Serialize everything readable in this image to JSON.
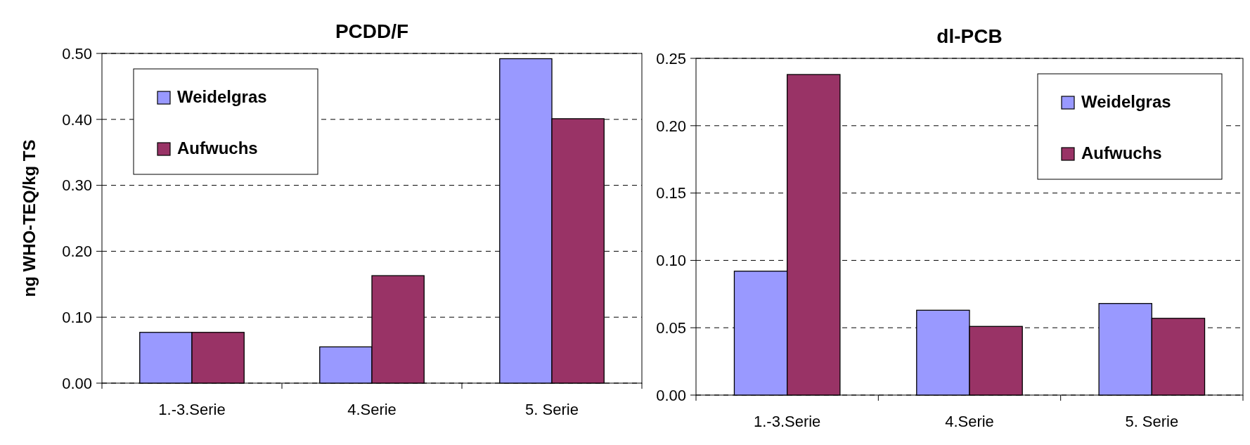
{
  "chart_data": [
    {
      "type": "bar",
      "title": "PCDD/F",
      "ylabel": "ng WHO-TEQ/kg TS",
      "categories": [
        "1.-3.Serie",
        "4.Serie",
        "5. Serie"
      ],
      "series": [
        {
          "name": "Weidelgras",
          "color": "#9999ff",
          "values": [
            0.077,
            0.055,
            0.492
          ]
        },
        {
          "name": "Aufwuchs",
          "color": "#993366",
          "values": [
            0.077,
            0.163,
            0.401
          ]
        }
      ],
      "ylim": [
        0,
        0.5
      ],
      "yticks": [
        {
          "value": 0,
          "label": "0.00"
        },
        {
          "value": 0.1,
          "label": "0.10"
        },
        {
          "value": 0.2,
          "label": "0.20"
        },
        {
          "value": 0.3,
          "label": "0.30"
        },
        {
          "value": 0.4,
          "label": "0.40"
        },
        {
          "value": 0.5,
          "label": "0.50"
        }
      ],
      "grid": "y",
      "legend": "top left"
    },
    {
      "type": "bar",
      "title": "dl-PCB",
      "categories": [
        "1.-3.Serie",
        "4.Serie",
        "5. Serie"
      ],
      "series": [
        {
          "name": "Weidelgras",
          "color": "#9999ff",
          "values": [
            0.092,
            0.063,
            0.068
          ]
        },
        {
          "name": "Aufwuchs",
          "color": "#993366",
          "values": [
            0.238,
            0.051,
            0.057
          ]
        }
      ],
      "ylim": [
        0,
        0.25
      ],
      "yticks": [
        {
          "value": 0,
          "label": "0.00"
        },
        {
          "value": 0.05,
          "label": "0.05"
        },
        {
          "value": 0.1,
          "label": "0.10"
        },
        {
          "value": 0.15,
          "label": "0.15"
        },
        {
          "value": 0.2,
          "label": "0.20"
        },
        {
          "value": 0.25,
          "label": "0.25"
        }
      ],
      "grid": "y",
      "legend": "top right"
    }
  ]
}
